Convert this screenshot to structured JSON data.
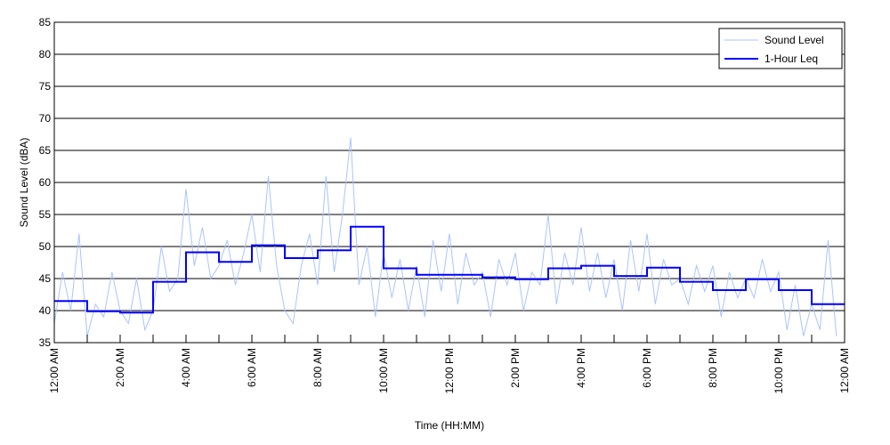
{
  "chart_data": {
    "type": "line",
    "title": "",
    "xlabel": "Time (HH:MM)",
    "ylabel": "Sound Level (dBA)",
    "ylim": [
      35,
      85
    ],
    "yticks": [
      35,
      40,
      45,
      50,
      55,
      60,
      65,
      70,
      75,
      80,
      85
    ],
    "xlim_hours": [
      0,
      24
    ],
    "xtick_labels": [
      "12:00 AM",
      "2:00 AM",
      "4:00 AM",
      "6:00 AM",
      "8:00 AM",
      "10:00 AM",
      "12:00 PM",
      "2:00 PM",
      "4:00 PM",
      "6:00 PM",
      "8:00 PM",
      "10:00 PM",
      "12:00 AM"
    ],
    "grid": true,
    "legend": {
      "position": "top-right",
      "entries": [
        "Sound Level",
        "1-Hour Leq"
      ]
    },
    "series": [
      {
        "name": "Sound Level",
        "color": "#aac4ff",
        "interval_minutes": 15,
        "values": [
          38,
          46,
          40,
          52,
          36,
          41,
          39,
          46,
          40,
          38,
          45,
          37,
          40,
          50,
          43,
          45,
          59,
          47,
          53,
          45,
          47,
          51,
          44,
          49,
          55,
          46,
          61,
          47,
          40,
          38,
          47,
          52,
          44,
          61,
          46,
          55,
          67,
          44,
          50,
          39,
          49,
          42,
          48,
          40,
          47,
          39,
          51,
          43,
          52,
          41,
          49,
          44,
          46,
          39,
          48,
          44,
          49,
          40,
          46,
          44,
          55,
          41,
          49,
          44,
          53,
          43,
          49,
          42,
          48,
          40,
          51,
          43,
          52,
          41,
          48,
          44,
          45,
          41,
          47,
          43,
          47,
          39,
          46,
          42,
          45,
          42,
          48,
          43,
          46,
          37,
          44,
          36,
          41,
          37,
          51,
          36
        ]
      },
      {
        "name": "1-Hour Leq",
        "color": "#0000ff",
        "interval_minutes": 60,
        "values": [
          41.5,
          39.9,
          39.7,
          44.5,
          49.1,
          47.6,
          50.2,
          48.2,
          49.4,
          53.1,
          46.6,
          45.6,
          45.6,
          45.2,
          44.9,
          46.6,
          47.0,
          45.4,
          46.7,
          44.5,
          43.2,
          44.9,
          43.2,
          41.0
        ]
      }
    ]
  }
}
